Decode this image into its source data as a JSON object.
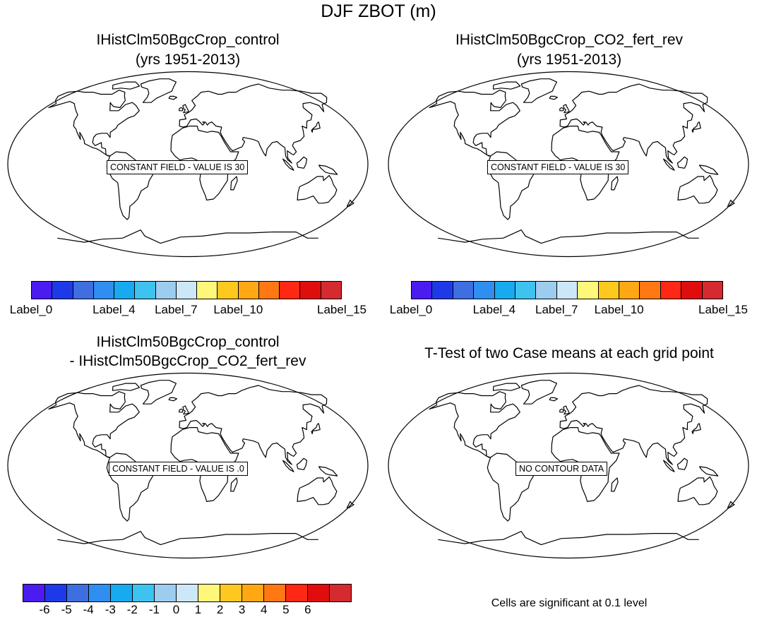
{
  "figure": {
    "title": "DJF ZBOT (m)"
  },
  "colors": [
    "#4a1cf0",
    "#1e3ae8",
    "#3e6ee0",
    "#2f8ef0",
    "#18aaf0",
    "#3ec3f0",
    "#9dcdee",
    "#cce8f8",
    "#fff77a",
    "#ffc81e",
    "#ffa814",
    "#ff7814",
    "#ff2814",
    "#e00d0d",
    "#d42a30"
  ],
  "panels": [
    {
      "title_line1": "IHistClm50BgcCrop_control",
      "title_line2": "(yrs 1951-2013)",
      "field_label": "CONSTANT FIELD - VALUE IS 30",
      "colorbar": {
        "labels": [
          "Label_0",
          "Label_4",
          "Label_7",
          "Label_10",
          "Label_15"
        ],
        "label_boundaries": [
          0,
          4,
          7,
          10,
          15
        ]
      }
    },
    {
      "title_line1": "IHistClm50BgcCrop_CO2_fert_rev",
      "title_line2": "(yrs 1951-2013)",
      "field_label": "CONSTANT FIELD - VALUE IS 30",
      "colorbar": {
        "labels": [
          "Label_0",
          "Label_4",
          "Label_7",
          "Label_10",
          "Label_15"
        ],
        "label_boundaries": [
          0,
          4,
          7,
          10,
          15
        ]
      }
    },
    {
      "title_line1": "IHistClm50BgcCrop_control",
      "title_line2": "- IHistClm50BgcCrop_CO2_fert_rev",
      "field_label": "CONSTANT FIELD - VALUE IS .0",
      "colorbar": {
        "labels": [
          "-6",
          "-5",
          "-4",
          "-3",
          "-2",
          "-1",
          "0",
          "1",
          "2",
          "3",
          "4",
          "5",
          "6"
        ],
        "label_boundaries": [
          1,
          2,
          3,
          4,
          5,
          6,
          7,
          8,
          9,
          10,
          11,
          12,
          13
        ]
      }
    },
    {
      "title_line1": "T-Test of two Case means at each grid point",
      "title_line2": "",
      "field_label": "NO CONTOUR DATA",
      "note": "Cells are significant at 0.1 level"
    }
  ]
}
